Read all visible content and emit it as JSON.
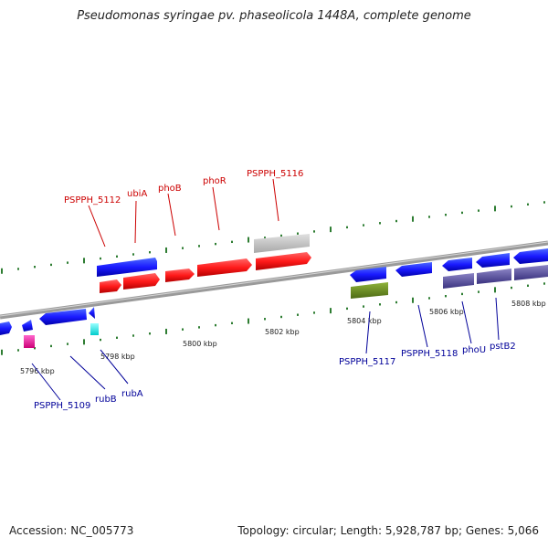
{
  "title": "Pseudomonas syringae pv. phaseolicola 1448A, complete genome",
  "accession": "Accession: NC_005773",
  "summary": "Topology: circular; Length: 5,928,787 bp; Genes: 5,066",
  "colors": {
    "label_top": "#cc0000",
    "label_bottom": "#000099",
    "backbone": "#8c8c8c",
    "tick": "#2e7d32"
  },
  "scale_labels": [
    "5796 kbp",
    "5798 kbp",
    "5800 kbp",
    "5802 kbp",
    "5804 kbp",
    "5806 kbp",
    "5808 kbp"
  ],
  "gene_labels": {
    "top": [
      "PSPPH_5112",
      "ubiA",
      "phoB",
      "phoR",
      "PSPPH_5116"
    ],
    "bottom": [
      "PSPPH_5109",
      "rubB",
      "rubA",
      "PSPPH_5117",
      "PSPPH_5118",
      "phoU",
      "pstB2"
    ]
  }
}
